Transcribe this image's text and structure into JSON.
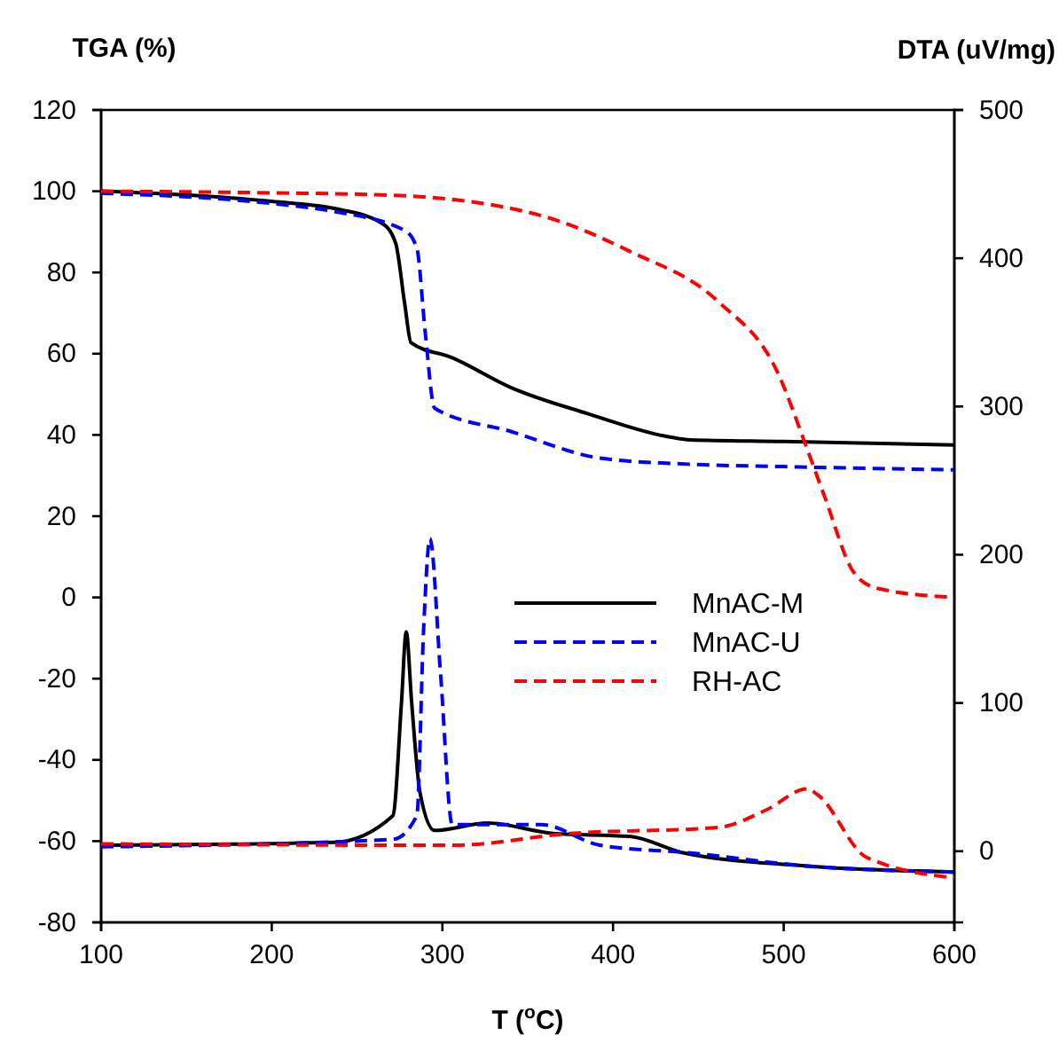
{
  "chart_data": {
    "type": "line",
    "xlabel": "T ($^{o}$C)",
    "ylabel": "TGA (%)",
    "y2label": "DTA (uV/mg)",
    "xlim": [
      100,
      600
    ],
    "xticks": [
      100,
      200,
      300,
      400,
      500,
      600
    ],
    "ylim": [
      -80,
      120
    ],
    "yticks": [
      -80,
      -60,
      -40,
      -20,
      0,
      20,
      40,
      60,
      80,
      100,
      120
    ],
    "y2lim": [
      -48,
      500
    ],
    "y2ticks": [
      0,
      100,
      200,
      300,
      400,
      500
    ],
    "grid": false,
    "legend": "right",
    "marker": "none",
    "series": [
      {
        "name": "MnAC-M",
        "color": "#000000",
        "line_style": "solid",
        "x": [
          100,
          200,
          240,
          265,
          272.6,
          278,
          281.6,
          305.8,
          340,
          385.5,
          430.6,
          445,
          500,
          600
        ],
        "values": [
          100,
          97.5,
          95.5,
          92,
          87.2,
          72,
          62.7,
          59,
          51.7,
          45.2,
          39.7,
          38.8,
          38.4,
          37.5
        ]
      },
      {
        "name": "MnAC-U",
        "color": "#0000ff",
        "line_style": "dashed",
        "x": [
          100,
          201.9,
          236.5,
          278,
          285,
          290,
          295.4,
          340.5,
          392.4,
          444,
          500,
          600
        ],
        "values": [
          99.5,
          96.9,
          95,
          90.3,
          86,
          65,
          46.6,
          40.8,
          34.3,
          32.8,
          32.2,
          31.4
        ]
      },
      {
        "name": "RH-AC",
        "color": "#ff0000",
        "line_style": "dashed",
        "x": [
          100,
          200,
          271,
          357.8,
          409.8,
          461.7,
          496.4,
          513.7,
          524,
          541.5,
          555.3,
          600
        ],
        "values": [
          100,
          99.6,
          99,
          94,
          85.2,
          72.8,
          55.4,
          36.6,
          24.8,
          5.9,
          2.2,
          0
        ]
      },
      {
        "axis": "y2",
        "color": "#000000",
        "line_style": "solid",
        "x": [
          100,
          236.5,
          271,
          276,
          278.8,
          282,
          286.8,
          295.4,
          326.6,
          364.8,
          409.8,
          441,
          513.7,
          600
        ],
        "values": [
          4,
          6,
          24,
          100,
          148,
          100,
          40,
          14,
          19,
          12,
          10,
          -1,
          -10,
          -14
        ]
      },
      {
        "axis": "y2",
        "color": "#0000ff",
        "line_style": "dashed",
        "x": [
          100,
          271,
          285,
          289,
          292.7,
          298.9,
          305.8,
          357.8,
          392.4,
          444,
          513.7,
          600
        ],
        "values": [
          3,
          8,
          24,
          150,
          211,
          120,
          18,
          18,
          4,
          -1,
          -10,
          -14
        ]
      },
      {
        "axis": "y2",
        "color": "#ff0000",
        "line_style": "dashed",
        "x": [
          100,
          305.8,
          375,
          461.7,
          490,
          513.7,
          520,
          548.4,
          600
        ],
        "values": [
          5,
          4,
          12,
          16,
          28,
          42,
          38,
          -4,
          -18
        ]
      }
    ]
  }
}
